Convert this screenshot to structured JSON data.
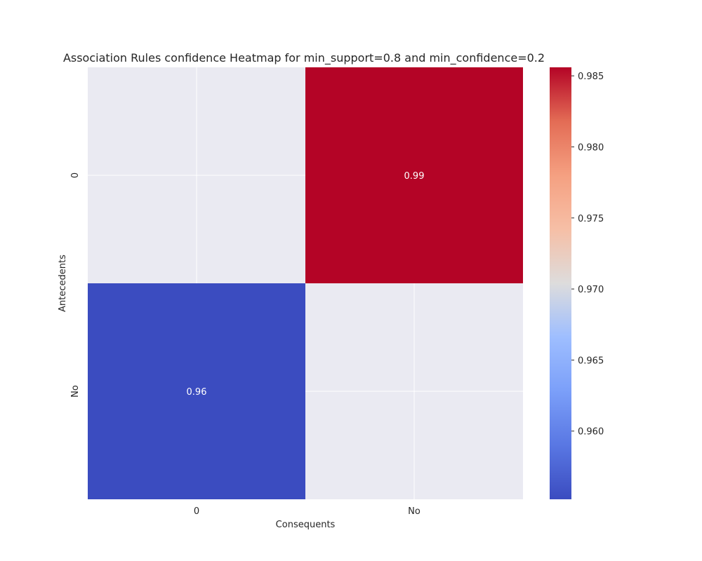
{
  "chart_data": {
    "type": "heatmap",
    "title": "Association Rules confidence Heatmap for min_support=0.8 and min_confidence=0.2",
    "xlabel": "Consequents",
    "ylabel": "Antecedents",
    "x_categories": [
      "0",
      "No"
    ],
    "y_categories": [
      "0",
      "No"
    ],
    "values": [
      [
        null,
        0.9856
      ],
      [
        0.9552,
        null
      ]
    ],
    "cell_labels": [
      [
        "",
        "0.99"
      ],
      [
        "0.96",
        ""
      ]
    ],
    "colorbar": {
      "vmin": 0.9552,
      "vmax": 0.9856,
      "ticks": [
        0.96,
        0.965,
        0.97,
        0.975,
        0.98,
        0.985
      ],
      "tick_labels": [
        "0.960",
        "0.965",
        "0.970",
        "0.975",
        "0.980",
        "0.985"
      ],
      "colormap": "coolwarm"
    },
    "missing_color": "#eaeaf2",
    "grid": true
  }
}
